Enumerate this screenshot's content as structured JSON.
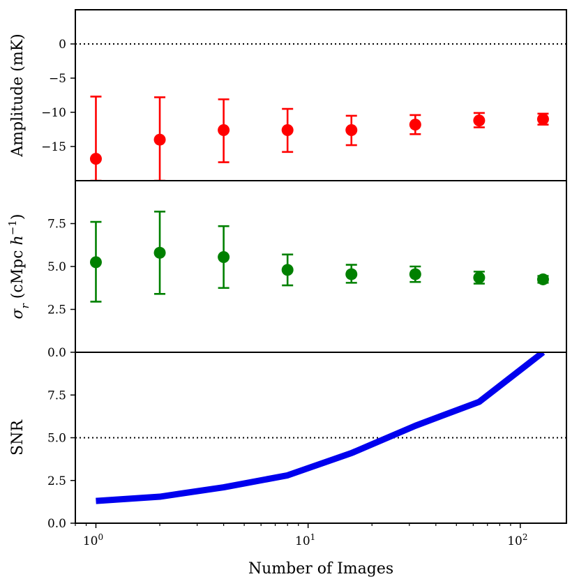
{
  "colors": {
    "amplitude": "#ff0000",
    "sigma": "#008000",
    "snr": "#0000ee",
    "reference_line": "#000000"
  },
  "chart_data": [
    {
      "type": "scatter",
      "panel": "top",
      "ylabel": "Amplitude (mK)",
      "ylim": [
        -20,
        5
      ],
      "yticks": [
        0,
        -5,
        -10,
        -15
      ],
      "ytick_labels": [
        "0",
        "−5",
        "−10",
        "−15"
      ],
      "reference_y": 0,
      "series": [
        {
          "name": "Amplitude",
          "x": [
            1,
            2,
            4,
            8,
            16,
            32,
            64,
            128
          ],
          "y": [
            -16.8,
            -14.0,
            -12.6,
            -12.6,
            -12.6,
            -11.8,
            -11.2,
            -11.0
          ],
          "err_low": [
            -20.0,
            -20.0,
            -17.3,
            -15.8,
            -14.8,
            -13.2,
            -12.2,
            -11.8
          ],
          "err_high": [
            -7.7,
            -7.8,
            -8.1,
            -9.5,
            -10.5,
            -10.4,
            -10.1,
            -10.2
          ]
        }
      ]
    },
    {
      "type": "scatter",
      "panel": "middle",
      "ylabel": "σ_r (cMpc h^−1)",
      "ylim": [
        0,
        10
      ],
      "yticks": [
        7.5,
        5.0,
        2.5,
        0.0
      ],
      "ytick_labels": [
        "7.5",
        "5.0",
        "2.5",
        "0.0"
      ],
      "series": [
        {
          "name": "sigma_r",
          "x": [
            1,
            2,
            4,
            8,
            16,
            32,
            64,
            128
          ],
          "y": [
            5.25,
            5.8,
            5.55,
            4.8,
            4.55,
            4.55,
            4.35,
            4.25
          ],
          "err_low": [
            2.95,
            3.4,
            3.75,
            3.9,
            4.05,
            4.1,
            4.0,
            4.05
          ],
          "err_high": [
            7.6,
            8.2,
            7.35,
            5.7,
            5.1,
            5.0,
            4.7,
            4.45
          ]
        }
      ]
    },
    {
      "type": "line",
      "panel": "bottom",
      "ylabel": "SNR",
      "ylim": [
        0,
        10
      ],
      "yticks": [
        7.5,
        5.0,
        2.5,
        0.0
      ],
      "ytick_labels": [
        "7.5",
        "5.0",
        "2.5",
        "0.0"
      ],
      "reference_y": 5.0,
      "xlabel": "Number of Images",
      "xscale": "log",
      "xlim": [
        0.8,
        165
      ],
      "xticks": [
        1,
        10,
        100
      ],
      "xtick_bases": [
        "10",
        "10",
        "10"
      ],
      "xtick_exponents": [
        "0",
        "1",
        "2"
      ],
      "series": [
        {
          "name": "SNR",
          "x": [
            1,
            2,
            4,
            8,
            16,
            32,
            64,
            128
          ],
          "y": [
            1.3,
            1.55,
            2.1,
            2.8,
            4.1,
            5.7,
            7.1,
            10.0
          ]
        }
      ]
    }
  ]
}
